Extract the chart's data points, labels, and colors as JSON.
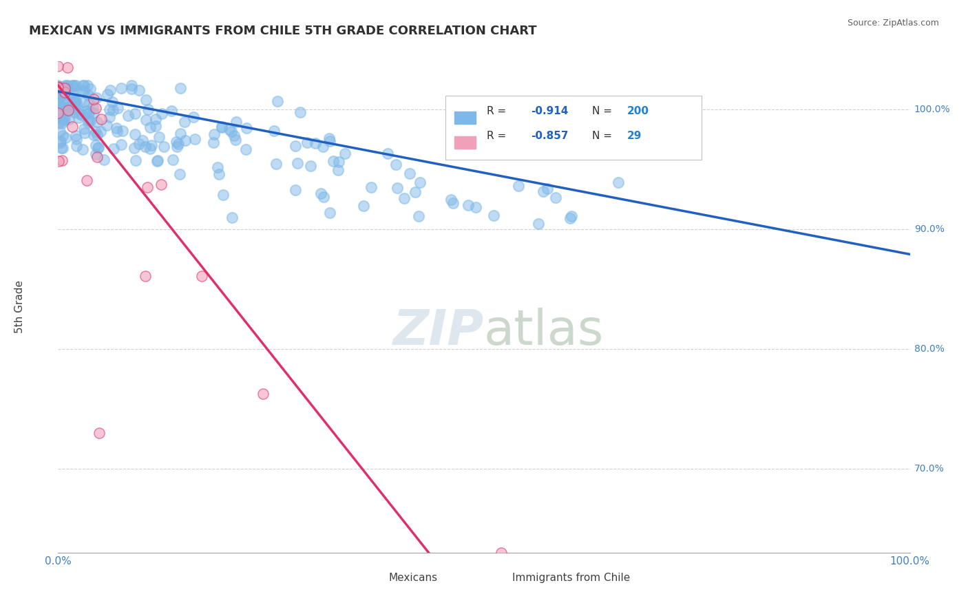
{
  "title": "MEXICAN VS IMMIGRANTS FROM CHILE 5TH GRADE CORRELATION CHART",
  "source": "Source: ZipAtlas.com",
  "ylabel": "5th Grade",
  "ylabel_right_ticks": [
    "100.0%",
    "90.0%",
    "80.0%",
    "70.0%"
  ],
  "ylabel_right_positions": [
    1.0,
    0.9,
    0.8,
    0.7
  ],
  "legend_labels": [
    "Mexicans",
    "Immigrants from Chile"
  ],
  "R_mexican": -0.914,
  "N_mexican": 200,
  "R_chile": -0.857,
  "N_chile": 29,
  "blue_color": "#7eb8e8",
  "blue_line_color": "#2060c0",
  "pink_color": "#f0a0b8",
  "pink_line_color": "#e0306a",
  "background_color": "#ffffff",
  "grid_color": "#d0d0d0",
  "title_color": "#303030",
  "source_color": "#606060",
  "legend_R_color": "#2060c0",
  "legend_N_color": "#2080d0",
  "axis_label_color": "#4080c0",
  "seed": 42
}
